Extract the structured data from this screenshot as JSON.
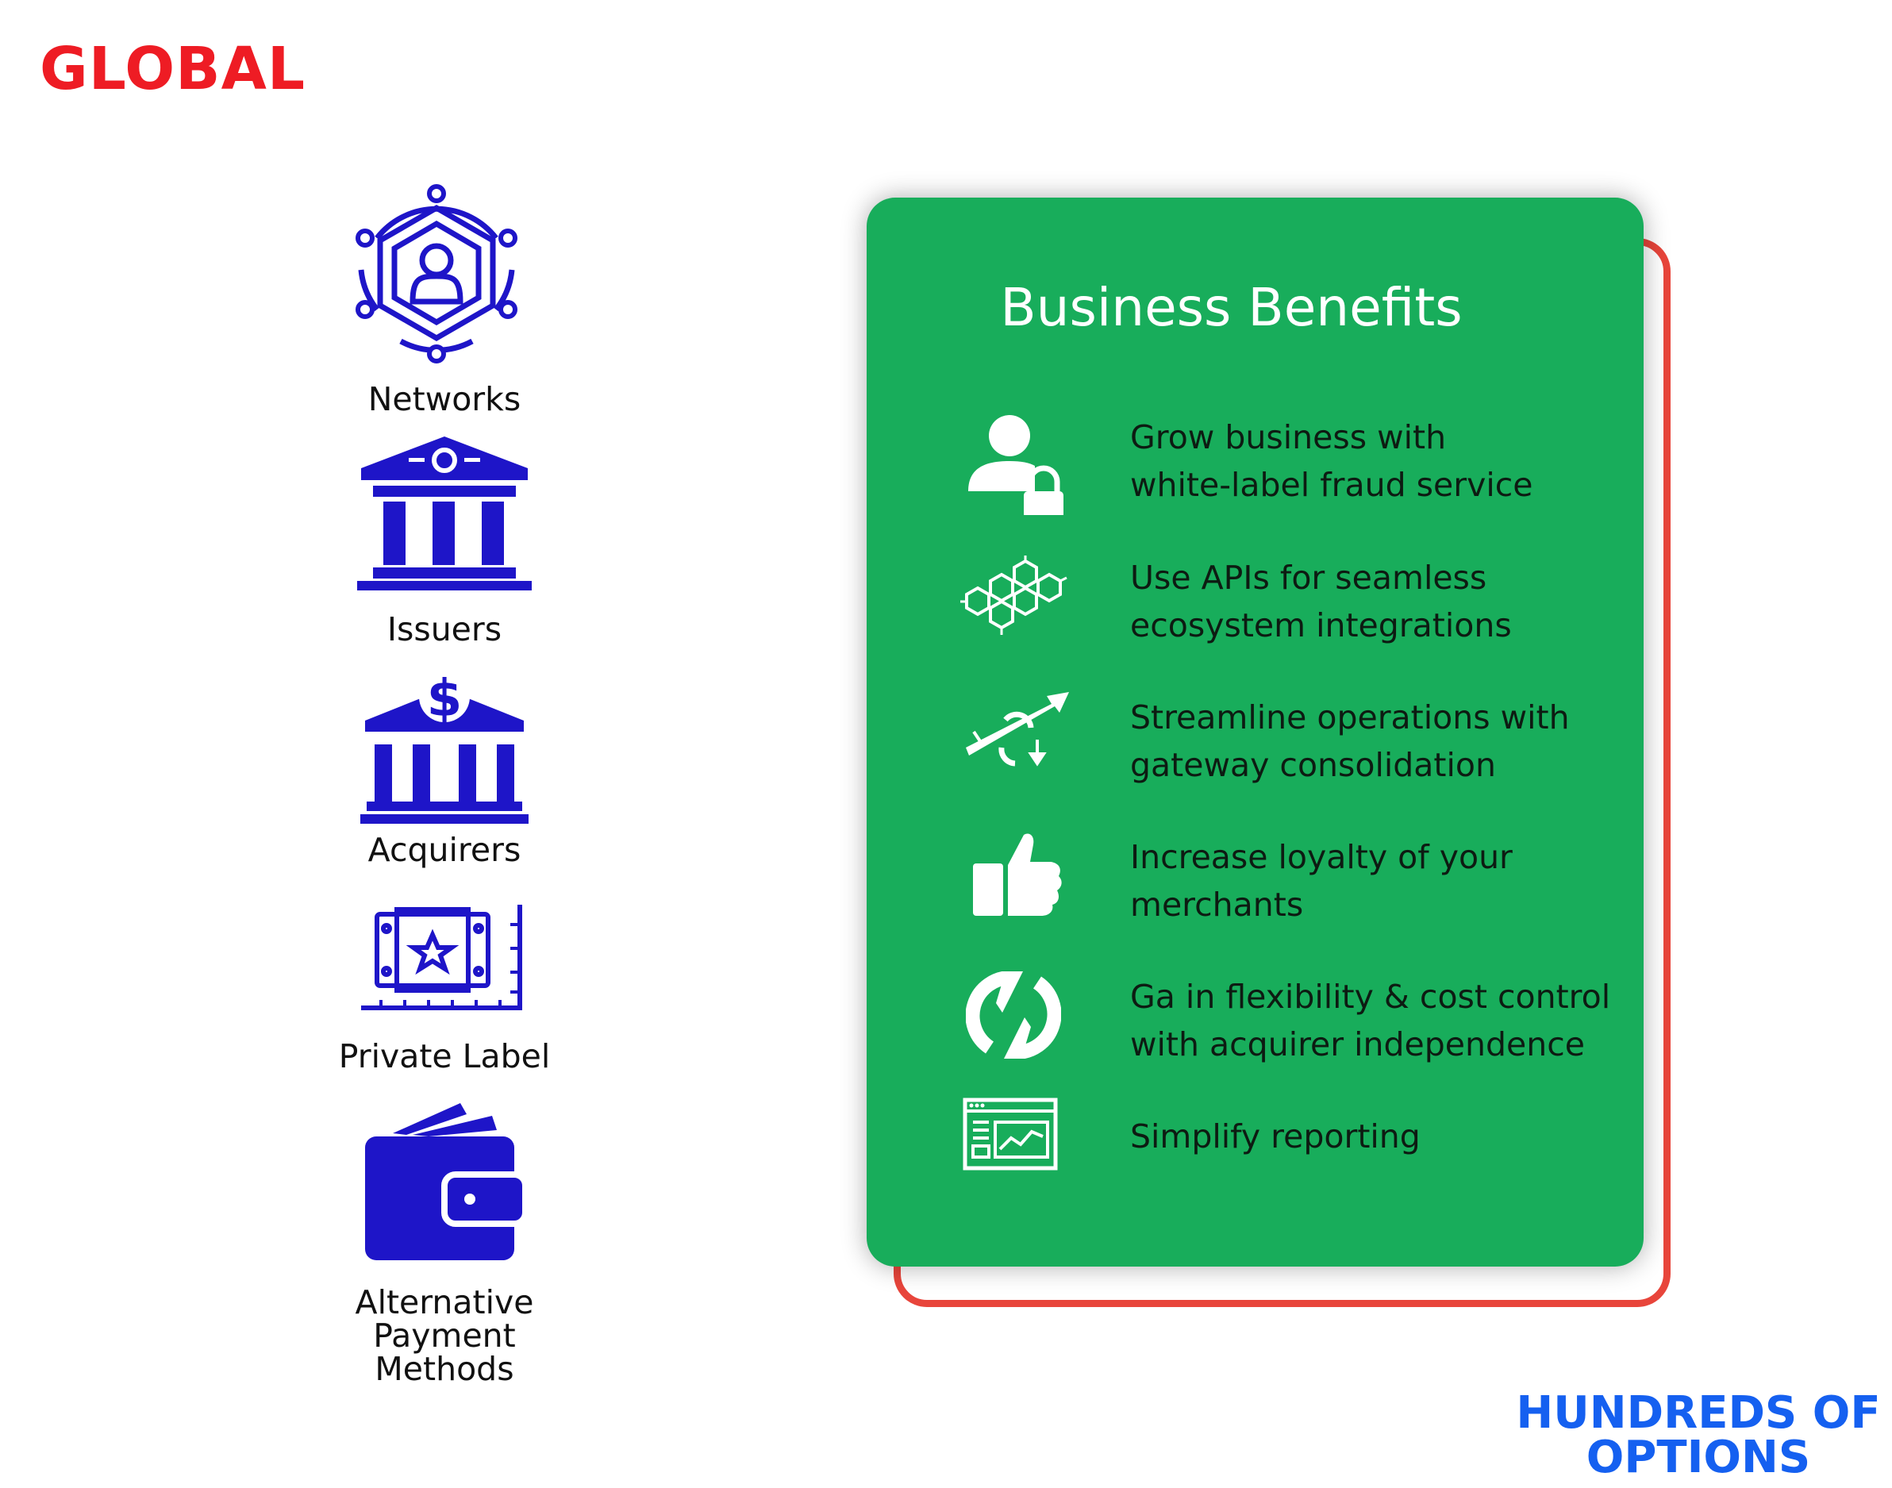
{
  "global_label": "GLOBAL",
  "entities": [
    {
      "label": "Networks",
      "icon": "network-hexagon-icon"
    },
    {
      "label": "Issuers",
      "icon": "bank-building-icon"
    },
    {
      "label": "Acquirers",
      "icon": "bank-dollar-icon"
    },
    {
      "label": "Private Label",
      "icon": "private-label-card-icon"
    },
    {
      "label": "Alternative\nPayment\nMethods",
      "icon": "wallet-icon"
    }
  ],
  "benefits": {
    "title": "Business Benefits",
    "items": [
      {
        "text": "Grow business with\nwhite-label fraud service",
        "icon": "user-lock-icon"
      },
      {
        "text": "Use APIs for seamless\necosystem integrations",
        "icon": "hexagon-cluster-icon"
      },
      {
        "text": "Streamline operations with\ngateway consolidation",
        "icon": "arrows-consolidation-icon"
      },
      {
        "text": "Increase loyalty of your\nmerchants",
        "icon": "thumbs-up-icon"
      },
      {
        "text": "Ga in flexibility & cost control\nwith acquirer independence",
        "icon": "sync-arrows-icon"
      },
      {
        "text": "Simplify reporting",
        "icon": "report-dashboard-icon"
      }
    ]
  },
  "options_label": "HUNDREDS OF\nOPTIONS",
  "colors": {
    "global_red": "#ee1c24",
    "icon_blue": "#1e15c8",
    "card_green": "#18ad5b",
    "frame_red": "#e8453b",
    "options_blue": "#1560f0"
  }
}
